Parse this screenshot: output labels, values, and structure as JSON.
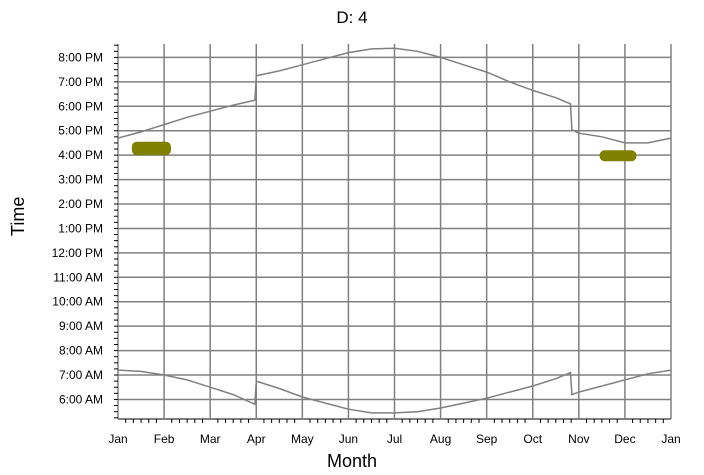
{
  "chart_data": {
    "type": "line",
    "title": "D: 4",
    "xlabel": "Month",
    "ylabel": "Time",
    "x_ticks": [
      "Jan",
      "Feb",
      "Mar",
      "Apr",
      "May",
      "Jun",
      "Jul",
      "Aug",
      "Sep",
      "Oct",
      "Nov",
      "Dec",
      "Jan"
    ],
    "y_ticks": [
      "6:00 AM",
      "7:00 AM",
      "8:00 AM",
      "9:00 AM",
      "10:00 AM",
      "11:00 AM",
      "12:00 PM",
      "1:00 PM",
      "2:00 PM",
      "3:00 PM",
      "4:00 PM",
      "5:00 PM",
      "6:00 PM",
      "7:00 PM",
      "8:00 PM"
    ],
    "ylim_hours": [
      5.2,
      8.95
    ],
    "ylim_hours_end": 20.55,
    "grid": true,
    "series": [
      {
        "x_month": [
          0,
          0.5,
          1,
          1.5,
          2,
          2.5,
          2.97,
          3,
          3.5,
          4,
          4.5,
          5,
          5.5,
          6,
          6.5,
          7,
          7.5,
          8,
          8.5,
          9,
          9.5,
          9.82,
          9.85,
          10,
          10.5,
          11,
          11.5,
          12
        ],
        "hours": [
          16.7,
          16.95,
          17.25,
          17.55,
          17.8,
          18.05,
          18.25,
          19.25,
          19.45,
          19.7,
          19.95,
          20.2,
          20.35,
          20.38,
          20.25,
          20.0,
          19.7,
          19.4,
          19.0,
          18.65,
          18.35,
          18.1,
          17.05,
          16.9,
          16.75,
          16.5,
          16.5,
          16.7
        ]
      },
      {
        "x_month": [
          0,
          0.5,
          1,
          1.5,
          2,
          2.5,
          2.97,
          3,
          3.5,
          4,
          4.5,
          5,
          5.5,
          6,
          6.5,
          7,
          7.5,
          8,
          8.5,
          9,
          9.5,
          9.82,
          9.85,
          10,
          10.5,
          11,
          11.5,
          12
        ],
        "hours": [
          7.2,
          7.15,
          7.0,
          6.8,
          6.5,
          6.2,
          5.8,
          6.75,
          6.45,
          6.1,
          5.85,
          5.6,
          5.45,
          5.45,
          5.5,
          5.65,
          5.85,
          6.05,
          6.3,
          6.55,
          6.85,
          7.1,
          6.2,
          6.3,
          6.55,
          6.8,
          7.05,
          7.2
        ]
      }
    ],
    "blobs": [
      {
        "x_month": [
          0.3,
          1.15
        ],
        "hours": [
          16.0,
          16.55
        ]
      },
      {
        "x_month": [
          10.45,
          11.25
        ],
        "hours": [
          15.75,
          16.2
        ]
      }
    ],
    "colors": {
      "line": "#808080",
      "grid": "#808080",
      "blob": "#808000"
    }
  }
}
